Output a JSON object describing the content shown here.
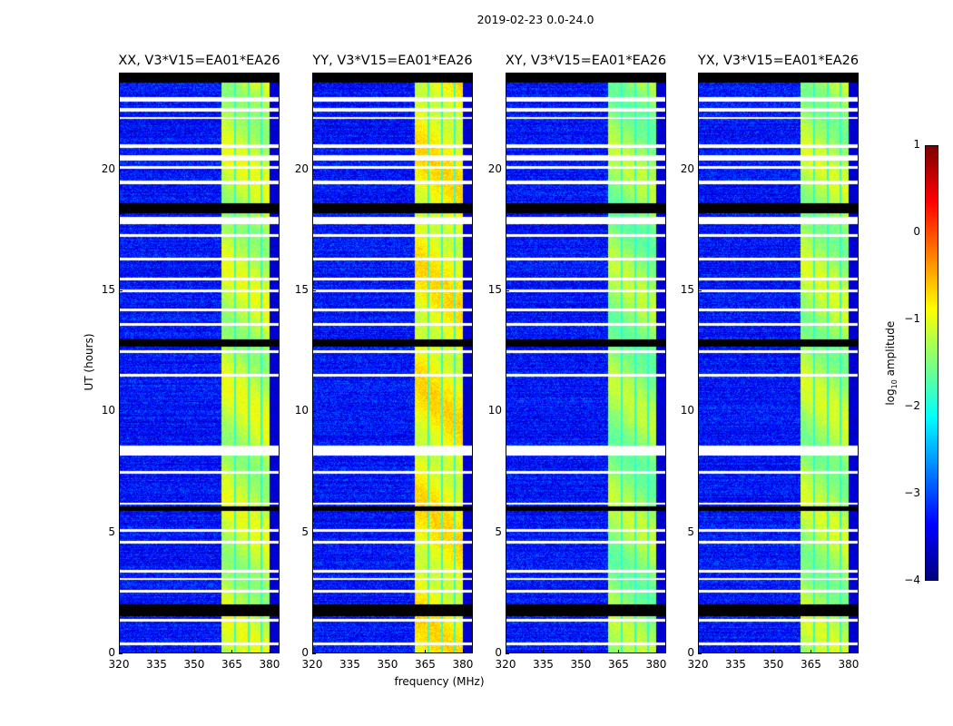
{
  "chart_data": {
    "type": "heatmap",
    "title": "2019-02-23 0.0-24.0",
    "xlabel": "frequency (MHz)",
    "ylabel": "UT (hours)",
    "xlim": [
      320,
      384
    ],
    "ylim": [
      0,
      24
    ],
    "xticks": [
      "320",
      "335",
      "350",
      "365",
      "380"
    ],
    "yticks": [
      "0",
      "5",
      "10",
      "15",
      "20"
    ],
    "panels": [
      {
        "title": "XX, V3*V15=EA01*EA26",
        "band_level": -1.2
      },
      {
        "title": "YY, V3*V15=EA01*EA26",
        "band_level": -0.9
      },
      {
        "title": "XY, V3*V15=EA01*EA26",
        "band_level": -1.4
      },
      {
        "title": "YX, V3*V15=EA01*EA26",
        "band_level": -1.3
      }
    ],
    "background_level": -3.3,
    "bright_band_mhz": [
      360.5,
      380
    ],
    "band_gaps_mhz": [
      366,
      371.5,
      376.5
    ],
    "flagged_white_hours": [
      [
        22.8,
        23.0
      ],
      [
        22.4,
        22.55
      ],
      [
        22.1,
        22.2
      ],
      [
        20.9,
        21.05
      ],
      [
        20.4,
        20.6
      ],
      [
        20.05,
        20.15
      ],
      [
        19.4,
        19.55
      ],
      [
        17.75,
        18.05
      ],
      [
        17.25,
        17.35
      ],
      [
        16.25,
        16.35
      ],
      [
        15.45,
        15.55
      ],
      [
        14.95,
        15.05
      ],
      [
        14.15,
        14.25
      ],
      [
        13.55,
        13.65
      ],
      [
        12.45,
        12.55
      ],
      [
        11.45,
        11.55
      ],
      [
        8.2,
        8.6
      ],
      [
        7.45,
        7.55
      ],
      [
        6.15,
        6.25
      ],
      [
        5.05,
        5.15
      ],
      [
        4.55,
        4.65
      ],
      [
        3.35,
        3.45
      ],
      [
        3.05,
        3.15
      ],
      [
        2.55,
        2.65
      ],
      [
        1.75,
        1.85
      ],
      [
        1.35,
        1.45
      ],
      [
        0.35,
        0.45
      ]
    ],
    "flagged_black_hours": [
      [
        23.6,
        24.0
      ],
      [
        18.2,
        18.6
      ],
      [
        12.7,
        13.0
      ],
      [
        5.9,
        6.1
      ],
      [
        1.55,
        2.05
      ]
    ],
    "colorbar": {
      "label": "log10 amplitude",
      "label_base": "log",
      "label_sub": "10",
      "label_rest": " amplitude",
      "range": [
        -4,
        1
      ],
      "ticks": [
        "1",
        "0",
        "−1",
        "−2",
        "−3",
        "−4"
      ],
      "colormap": "jet"
    }
  }
}
